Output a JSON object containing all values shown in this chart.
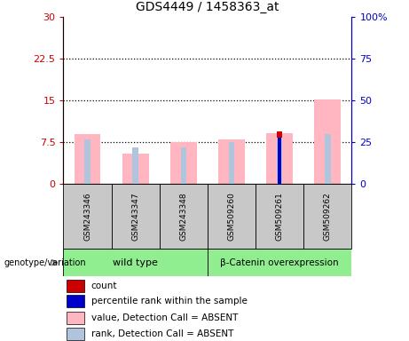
{
  "title": "GDS4449 / 1458363_at",
  "samples": [
    "GSM243346",
    "GSM243347",
    "GSM243348",
    "GSM509260",
    "GSM509261",
    "GSM509262"
  ],
  "ylim_left": [
    0,
    30
  ],
  "ylim_right": [
    0,
    100
  ],
  "yticks_left": [
    0,
    7.5,
    15,
    22.5,
    30
  ],
  "yticks_right": [
    0,
    25,
    50,
    75,
    100
  ],
  "ytick_labels_left": [
    "0",
    "7.5",
    "15",
    "22.5",
    "30"
  ],
  "ytick_labels_right": [
    "0",
    "25",
    "50",
    "75",
    "100%"
  ],
  "pink_bar_values": [
    9.0,
    5.5,
    7.5,
    8.0,
    9.2,
    15.2
  ],
  "blue_bar_values_pct": [
    27,
    22,
    22,
    25,
    28,
    30
  ],
  "red_bar_values": [
    0,
    0,
    0,
    0,
    9.5,
    0
  ],
  "dark_blue_bar_values_pct": [
    0,
    0,
    0,
    0,
    28,
    0
  ],
  "pink_color": "#ffb6c1",
  "light_blue_color": "#b0c4de",
  "red_color": "#cc0000",
  "blue_color": "#0000cc",
  "left_axis_color": "#cc0000",
  "right_axis_color": "#0000cc",
  "sample_area_color": "#c8c8c8",
  "group_area_color": "#90ee90",
  "legend_items": [
    {
      "label": "count",
      "color": "#cc0000"
    },
    {
      "label": "percentile rank within the sample",
      "color": "#0000cc"
    },
    {
      "label": "value, Detection Call = ABSENT",
      "color": "#ffb6c1"
    },
    {
      "label": "rank, Detection Call = ABSENT",
      "color": "#b0c4de"
    }
  ],
  "group1_label": "wild type",
  "group2_label": "β-Catenin overexpression",
  "genotype_label": "genotype/variation"
}
